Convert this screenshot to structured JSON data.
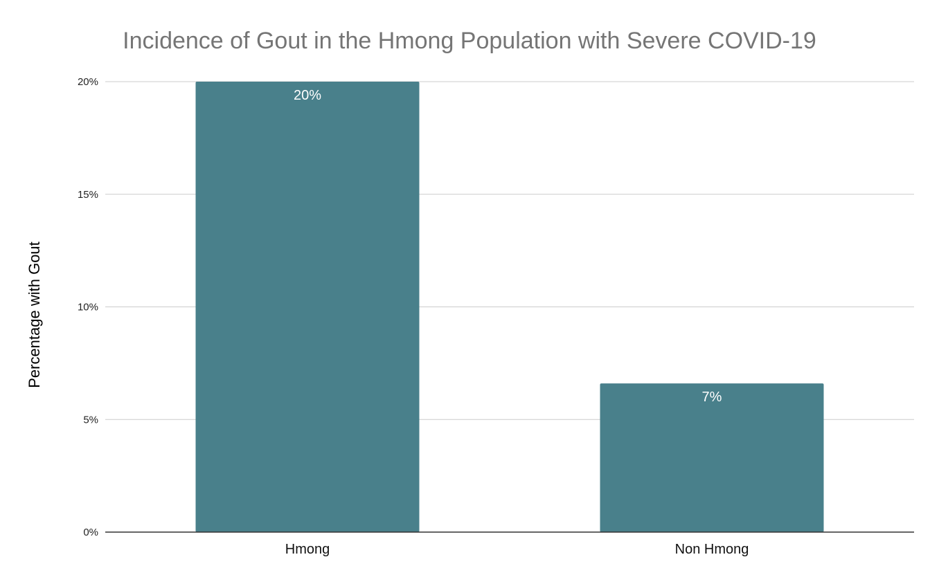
{
  "chart_data": {
    "type": "bar",
    "title": "Incidence of Gout in the Hmong Population with Severe COVID-19",
    "xlabel": "",
    "ylabel": "Percentage with Gout",
    "categories": [
      "Hmong",
      "Non Hmong"
    ],
    "values": [
      20,
      6.6
    ],
    "data_labels": [
      "20%",
      "7%"
    ],
    "ylim": [
      0,
      20
    ],
    "yticks": [
      0,
      5,
      10,
      15,
      20
    ],
    "ytick_labels": [
      "0%",
      "5%",
      "10%",
      "15%",
      "20%"
    ],
    "grid": true,
    "legend": "none",
    "colors": {
      "bar": "#49808b",
      "grid": "#cccccc",
      "axis": "#333333",
      "title": "#757575",
      "data_label": "#ffffff"
    }
  }
}
